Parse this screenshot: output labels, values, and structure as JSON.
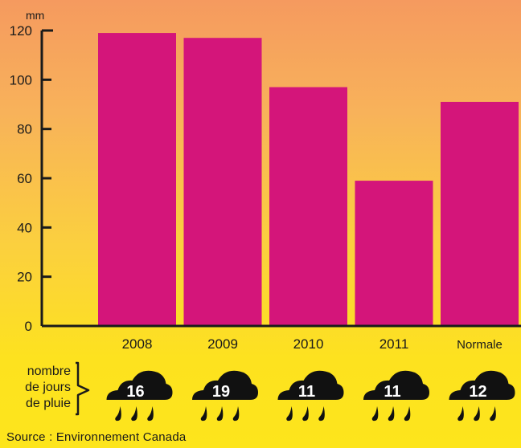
{
  "chart_data": {
    "type": "bar",
    "categories": [
      "2008",
      "2009",
      "2010",
      "2011",
      "Normale"
    ],
    "values": [
      119,
      117,
      97,
      59,
      91
    ],
    "ylim": [
      0,
      120
    ],
    "yticks": [
      0,
      20,
      40,
      60,
      80,
      100,
      120
    ],
    "y_unit": "mm",
    "grid": false,
    "bar_color": "#d4157a",
    "rain_days": {
      "label_lines": [
        "nombre",
        "de jours",
        "de pluie"
      ],
      "values": [
        16,
        19,
        11,
        11,
        12
      ]
    }
  },
  "source": "Source : Environnement Canada",
  "colors": {
    "axis": "#1a1a1a",
    "cloud": "#111111",
    "cloud_text": "#ffffff"
  },
  "icons": [
    "rain-cloud-icon",
    "raindrop-icon",
    "brace-icon"
  ]
}
